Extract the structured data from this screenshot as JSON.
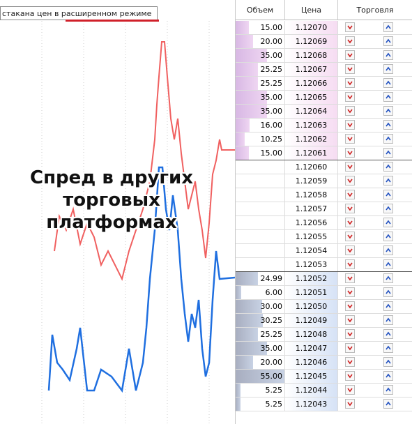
{
  "tooltip": "стакана цен в расширенном режиме",
  "overlay": [
    "Спред в других",
    "торговых",
    "платформах"
  ],
  "order_book": {
    "columns": [
      "Объем",
      "Цена",
      "Торговля"
    ],
    "asks": [
      {
        "volume": "15.00",
        "price": "1.12070"
      },
      {
        "volume": "20.00",
        "price": "1.12069"
      },
      {
        "volume": "35.00",
        "price": "1.12068"
      },
      {
        "volume": "25.25",
        "price": "1.12067"
      },
      {
        "volume": "25.25",
        "price": "1.12066"
      },
      {
        "volume": "35.00",
        "price": "1.12065"
      },
      {
        "volume": "35.00",
        "price": "1.12064"
      },
      {
        "volume": "16.00",
        "price": "1.12063"
      },
      {
        "volume": "10.25",
        "price": "1.12062"
      },
      {
        "volume": "15.00",
        "price": "1.12061"
      }
    ],
    "spread": [
      {
        "price": "1.12060"
      },
      {
        "price": "1.12059"
      },
      {
        "price": "1.12058"
      },
      {
        "price": "1.12057"
      },
      {
        "price": "1.12056"
      },
      {
        "price": "1.12055"
      },
      {
        "price": "1.12054"
      },
      {
        "price": "1.12053"
      }
    ],
    "bids": [
      {
        "volume": "24.99",
        "price": "1.12052"
      },
      {
        "volume": "6.00",
        "price": "1.12051"
      },
      {
        "volume": "30.00",
        "price": "1.12050"
      },
      {
        "volume": "30.25",
        "price": "1.12049"
      },
      {
        "volume": "25.25",
        "price": "1.12048"
      },
      {
        "volume": "35.00",
        "price": "1.12047"
      },
      {
        "volume": "20.00",
        "price": "1.12046"
      },
      {
        "volume": "55.00",
        "price": "1.12045"
      },
      {
        "volume": "5.25",
        "price": "1.12044"
      },
      {
        "volume": "5.25",
        "price": "1.12043"
      }
    ]
  }
}
